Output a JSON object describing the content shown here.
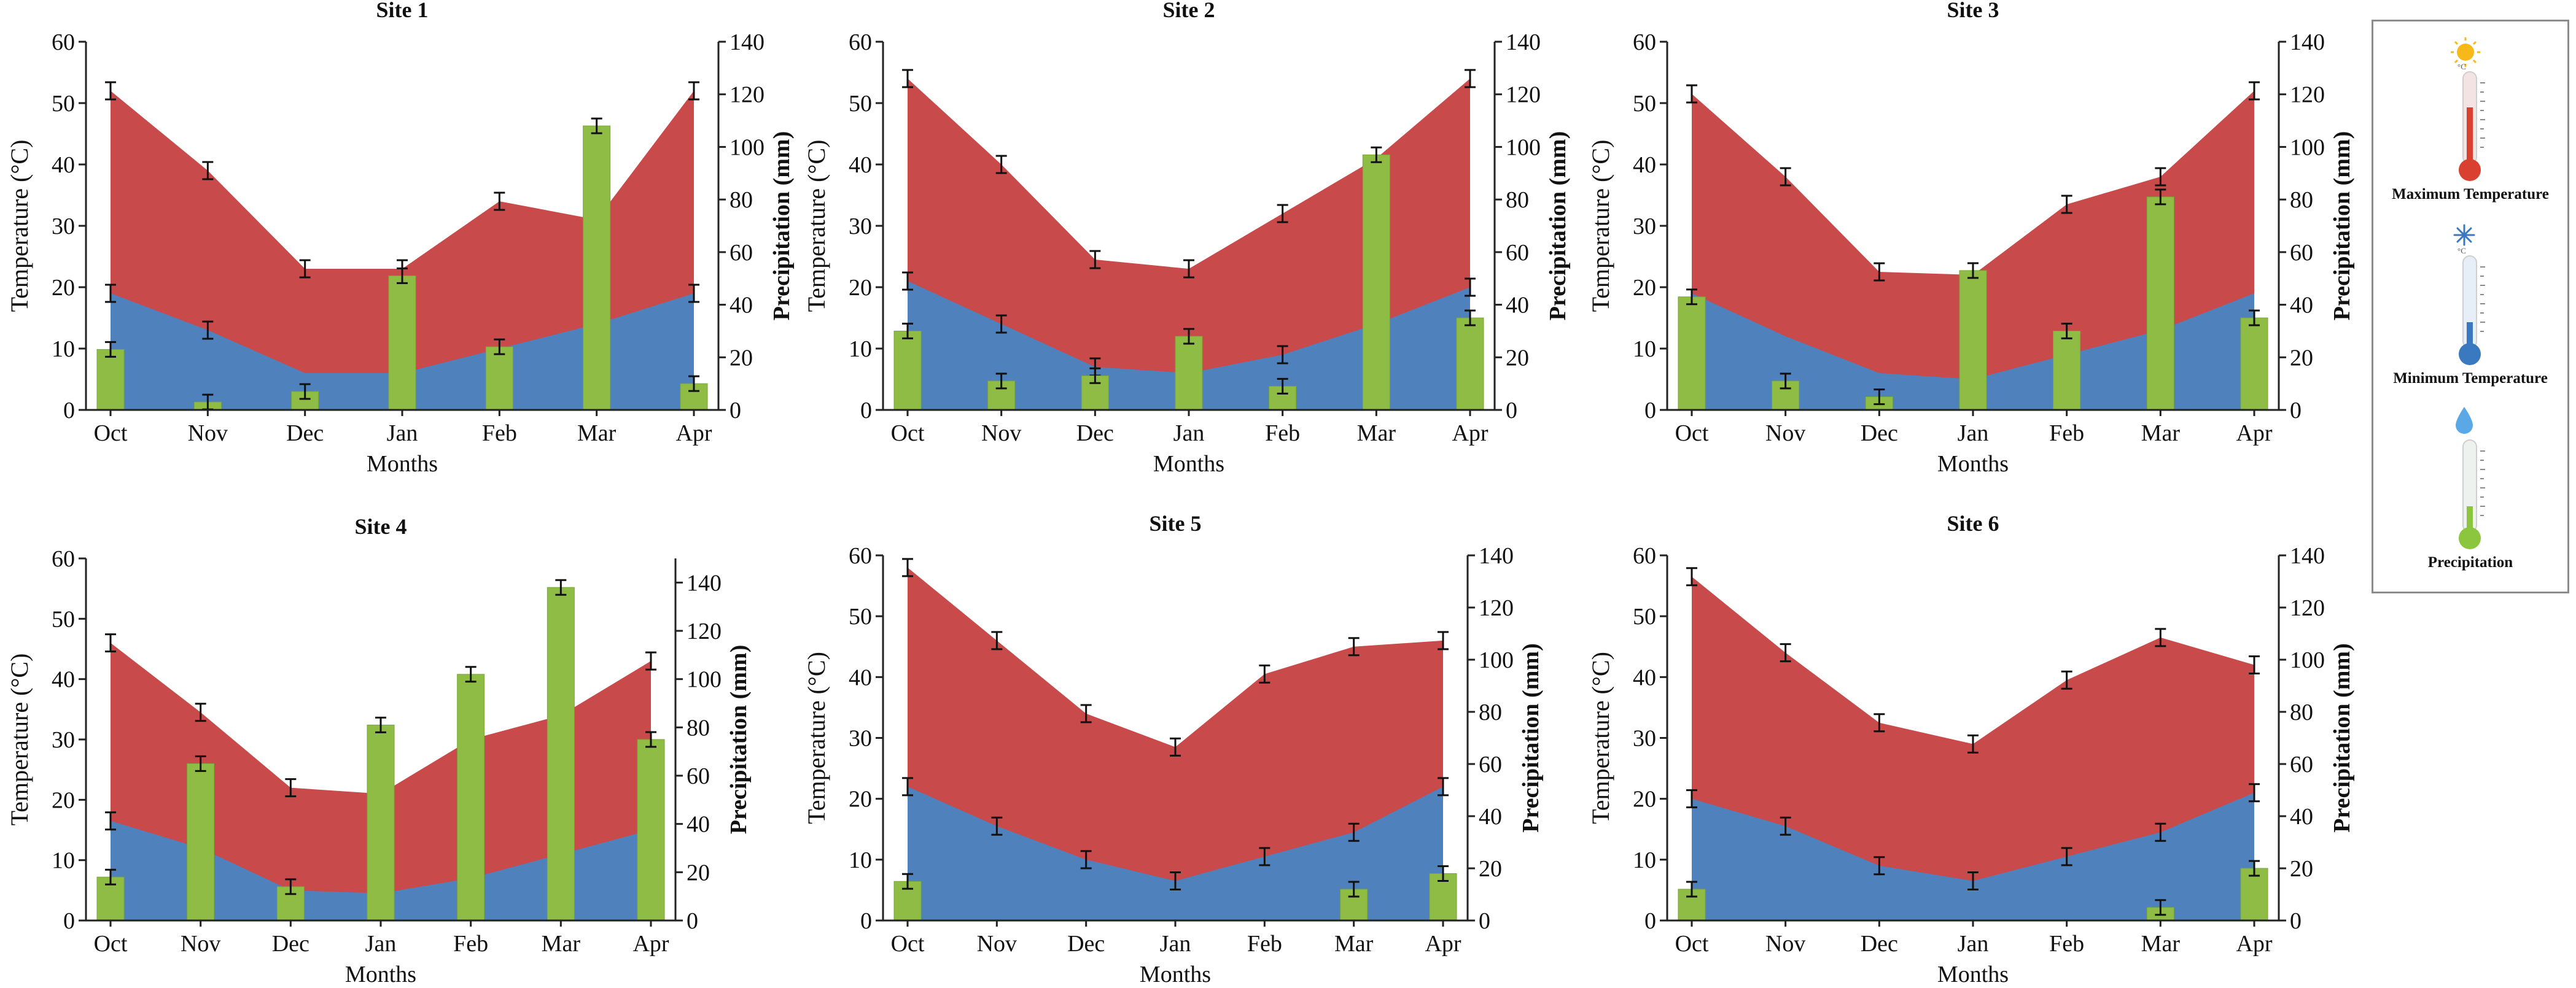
{
  "chart_data": [
    {
      "type": "area+bar",
      "title": "Site 1",
      "xlabel": "Months",
      "ylabel_left": "Temperature (°C)",
      "ylabel_right": "Precipitation (mm)",
      "categories": [
        "Oct",
        "Nov",
        "Dec",
        "Jan",
        "Feb",
        "Mar",
        "Apr"
      ],
      "ylim_left": [
        0,
        60
      ],
      "yticks_left": [
        0,
        10,
        20,
        30,
        40,
        50,
        60
      ],
      "ylim_right": [
        0,
        140
      ],
      "yticks_right": [
        0,
        20,
        40,
        60,
        80,
        100,
        120,
        140
      ],
      "series": [
        {
          "name": "Maximum Temperature",
          "axis": "left",
          "kind": "area",
          "values": [
            52,
            39,
            23,
            23,
            34,
            31,
            52
          ],
          "errorbars": [
            true,
            true,
            true,
            true,
            true,
            false,
            true
          ]
        },
        {
          "name": "Minimum Temperature",
          "axis": "left",
          "kind": "area",
          "values": [
            19,
            13,
            6,
            6,
            10,
            14,
            19
          ],
          "errorbars": [
            true,
            true,
            false,
            false,
            false,
            false,
            true
          ]
        },
        {
          "name": "Precipitation",
          "axis": "right",
          "kind": "bar",
          "values": [
            23,
            3,
            7,
            51,
            24,
            108,
            10
          ]
        }
      ]
    },
    {
      "type": "area+bar",
      "title": "Site 2",
      "xlabel": "Months",
      "ylabel_left": "Temperature (°C)",
      "ylabel_right": "Precipitation (mm)",
      "categories": [
        "Oct",
        "Nov",
        "Dec",
        "Jan",
        "Feb",
        "Mar",
        "Apr"
      ],
      "ylim_left": [
        0,
        60
      ],
      "yticks_left": [
        0,
        10,
        20,
        30,
        40,
        50,
        60
      ],
      "ylim_right": [
        0,
        140
      ],
      "yticks_right": [
        0,
        20,
        40,
        60,
        80,
        100,
        120,
        140
      ],
      "series": [
        {
          "name": "Maximum Temperature",
          "axis": "left",
          "kind": "area",
          "values": [
            54,
            40,
            24.5,
            23,
            32,
            41,
            54
          ],
          "errorbars": [
            true,
            true,
            true,
            true,
            true,
            false,
            true
          ]
        },
        {
          "name": "Minimum Temperature",
          "axis": "left",
          "kind": "area",
          "values": [
            21,
            14,
            7,
            6,
            9,
            14,
            20
          ],
          "errorbars": [
            true,
            true,
            true,
            false,
            true,
            false,
            true
          ]
        },
        {
          "name": "Precipitation",
          "axis": "right",
          "kind": "bar",
          "values": [
            30,
            11,
            13,
            28,
            9,
            97,
            35
          ]
        }
      ]
    },
    {
      "type": "area+bar",
      "title": "Site 3",
      "xlabel": "Months",
      "ylabel_left": "Temperature (°C)",
      "ylabel_right": "Precipitation (mm)",
      "categories": [
        "Oct",
        "Nov",
        "Dec",
        "Jan",
        "Feb",
        "Mar",
        "Apr"
      ],
      "ylim_left": [
        0,
        60
      ],
      "yticks_left": [
        0,
        10,
        20,
        30,
        40,
        50,
        60
      ],
      "ylim_right": [
        0,
        140
      ],
      "yticks_right": [
        0,
        20,
        40,
        60,
        80,
        100,
        120,
        140
      ],
      "series": [
        {
          "name": "Maximum Temperature",
          "axis": "left",
          "kind": "area",
          "values": [
            51.5,
            38,
            22.5,
            22,
            33.5,
            38,
            52
          ],
          "errorbars": [
            true,
            true,
            true,
            false,
            true,
            true,
            true
          ]
        },
        {
          "name": "Minimum Temperature",
          "axis": "left",
          "kind": "area",
          "values": [
            19,
            12,
            6,
            5,
            9,
            13,
            19
          ],
          "errorbars": [
            false,
            false,
            false,
            false,
            false,
            false,
            false
          ]
        },
        {
          "name": "Precipitation",
          "axis": "right",
          "kind": "bar",
          "values": [
            43,
            11,
            5,
            53,
            30,
            81,
            35
          ]
        }
      ]
    },
    {
      "type": "area+bar",
      "title": "Site 4",
      "xlabel": "Months",
      "ylabel_left": "Temperature (°C)",
      "ylabel_right": "Precipitation (mm)",
      "categories": [
        "Oct",
        "Nov",
        "Dec",
        "Jan",
        "Feb",
        "Mar",
        "Apr"
      ],
      "ylim_left": [
        0,
        60
      ],
      "yticks_left": [
        0,
        10,
        20,
        30,
        40,
        50,
        60
      ],
      "ylim_right": [
        0,
        150
      ],
      "yticks_right": [
        0,
        20,
        40,
        60,
        80,
        100,
        120,
        140
      ],
      "series": [
        {
          "name": "Maximum Temperature",
          "axis": "left",
          "kind": "area",
          "values": [
            46,
            34.5,
            22,
            21,
            30,
            34,
            43
          ],
          "errorbars": [
            true,
            true,
            true,
            false,
            false,
            false,
            true
          ]
        },
        {
          "name": "Minimum Temperature",
          "axis": "left",
          "kind": "area",
          "values": [
            16.5,
            12,
            5,
            4.5,
            7,
            11,
            15
          ],
          "errorbars": [
            true,
            false,
            false,
            false,
            false,
            false,
            false
          ]
        },
        {
          "name": "Precipitation",
          "axis": "right",
          "kind": "bar",
          "values": [
            18,
            65,
            14,
            81,
            102,
            138,
            75
          ]
        }
      ]
    },
    {
      "type": "area+bar",
      "title": "Site 5",
      "xlabel": "Months",
      "ylabel_left": "Temperature (°C)",
      "ylabel_right": "Precipitation (mm)",
      "categories": [
        "Oct",
        "Nov",
        "Dec",
        "Jan",
        "Feb",
        "Mar",
        "Apr"
      ],
      "ylim_left": [
        0,
        60
      ],
      "yticks_left": [
        0,
        10,
        20,
        30,
        40,
        50,
        60
      ],
      "ylim_right": [
        0,
        140
      ],
      "yticks_right": [
        0,
        20,
        40,
        60,
        80,
        100,
        120,
        140
      ],
      "series": [
        {
          "name": "Maximum Temperature",
          "axis": "left",
          "kind": "area",
          "values": [
            58,
            46,
            34,
            28.5,
            40.5,
            45,
            46
          ],
          "errorbars": [
            true,
            true,
            true,
            true,
            true,
            true,
            true
          ]
        },
        {
          "name": "Minimum Temperature",
          "axis": "left",
          "kind": "area",
          "values": [
            22,
            15.5,
            10,
            6.5,
            10.5,
            14.5,
            22
          ],
          "errorbars": [
            true,
            true,
            true,
            true,
            true,
            true,
            true
          ]
        },
        {
          "name": "Precipitation",
          "axis": "right",
          "kind": "bar",
          "values": [
            15,
            0,
            0,
            0,
            0,
            12,
            18
          ]
        }
      ]
    },
    {
      "type": "area+bar",
      "title": "Site 6",
      "xlabel": "Months",
      "ylabel_left": "Temperature (°C)",
      "ylabel_right": "Precipitation (mm)",
      "categories": [
        "Oct",
        "Nov",
        "Dec",
        "Jan",
        "Feb",
        "Mar",
        "Apr"
      ],
      "ylim_left": [
        0,
        60
      ],
      "yticks_left": [
        0,
        10,
        20,
        30,
        40,
        50,
        60
      ],
      "ylim_right": [
        0,
        140
      ],
      "yticks_right": [
        0,
        20,
        40,
        60,
        80,
        100,
        120,
        140
      ],
      "series": [
        {
          "name": "Maximum Temperature",
          "axis": "left",
          "kind": "area",
          "values": [
            56.5,
            44,
            32.5,
            29,
            39.5,
            46.5,
            42
          ],
          "errorbars": [
            true,
            true,
            true,
            true,
            true,
            true,
            true
          ]
        },
        {
          "name": "Minimum Temperature",
          "axis": "left",
          "kind": "area",
          "values": [
            20,
            15.5,
            9,
            6.5,
            10.5,
            14.5,
            21
          ],
          "errorbars": [
            true,
            true,
            true,
            true,
            true,
            true,
            true
          ]
        },
        {
          "name": "Precipitation",
          "axis": "right",
          "kind": "bar",
          "values": [
            12,
            0,
            0,
            0,
            0,
            5,
            20
          ]
        }
      ]
    }
  ],
  "legend": {
    "items": [
      {
        "label": "Maximum Temperature",
        "icon": "sun-thermometer-icon",
        "color": "#d9402f"
      },
      {
        "label": "Minimum Temperature",
        "icon": "snowflake-thermometer-icon",
        "color": "#3a78bf"
      },
      {
        "label": "Precipitation",
        "icon": "droplet-thermometer-icon",
        "color": "#8cc63f"
      }
    ],
    "unit_mark": "°C"
  },
  "colors": {
    "max_area": "#c94a4b",
    "min_area": "#4f81bd",
    "bar": "#8fbc45",
    "bar_edge": "#7aa636",
    "axis": "#222222"
  }
}
